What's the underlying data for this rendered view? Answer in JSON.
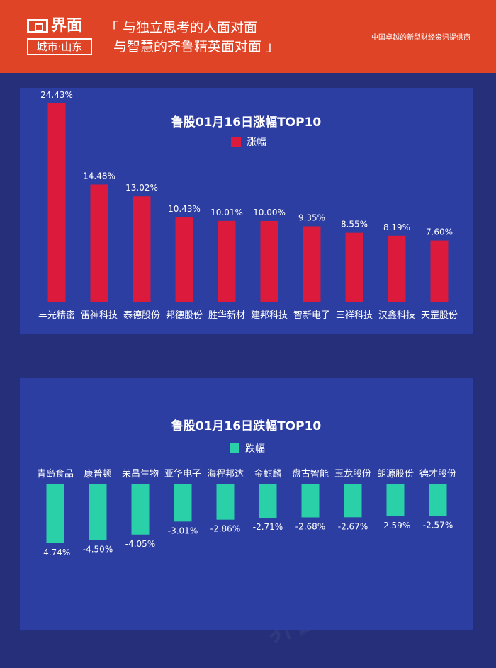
{
  "header": {
    "logo_top": "界面",
    "logo_bottom": "城市·山东",
    "slogan_line1": "「 与独立思考的人面对面",
    "slogan_line2": "与智慧的齐鲁精英面对面 」",
    "tagline": "中国卓越的新型财经资讯提供商"
  },
  "watermark": "界面 城市·山东",
  "colors": {
    "rise": "#dc1a3c",
    "fall": "#2ad0a8",
    "panel": "#2d3ea3",
    "background": "#252f7a",
    "header": "#df4426"
  },
  "chart_data": [
    {
      "type": "bar",
      "title": "鲁股01月16日涨幅TOP10",
      "legend": "涨幅",
      "categories": [
        "丰光精密",
        "雷神科技",
        "泰德股份",
        "邦德股份",
        "胜华新材",
        "建邦科技",
        "智新电子",
        "三祥科技",
        "汉鑫科技",
        "天罡股份"
      ],
      "values": [
        24.43,
        14.48,
        13.02,
        10.43,
        10.01,
        10.0,
        9.35,
        8.55,
        8.19,
        7.6
      ],
      "labels": [
        "24.43%",
        "14.48%",
        "13.02%",
        "10.43%",
        "10.01%",
        "10.00%",
        "9.35%",
        "8.55%",
        "8.19%",
        "7.60%"
      ],
      "color": "#dc1a3c"
    },
    {
      "type": "bar",
      "title": "鲁股01月16日跌幅TOP10",
      "legend": "跌幅",
      "categories": [
        "青岛食品",
        "康普顿",
        "荣昌生物",
        "亚华电子",
        "海程邦达",
        "金麒麟",
        "盘古智能",
        "玉龙股份",
        "朗源股份",
        "德才股份"
      ],
      "values": [
        -4.74,
        -4.5,
        -4.05,
        -3.01,
        -2.86,
        -2.71,
        -2.68,
        -2.67,
        -2.59,
        -2.57
      ],
      "labels": [
        "-4.74%",
        "-4.50%",
        "-4.05%",
        "-3.01%",
        "-2.86%",
        "-2.71%",
        "-2.68%",
        "-2.67%",
        "-2.59%",
        "-2.57%"
      ],
      "color": "#2ad0a8"
    }
  ]
}
